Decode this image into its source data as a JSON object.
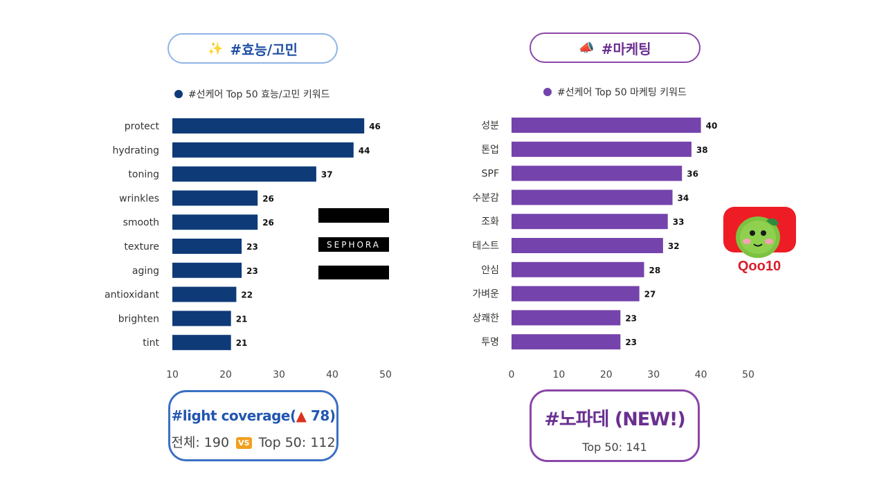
{
  "left": {
    "pill": {
      "emoji": "✨",
      "text": "#효능/고민"
    },
    "legend": {
      "label": "#선케어 Top 50 효능/고민 키워드",
      "color": "#0e3a78"
    },
    "box": {
      "line1_prefix": "#light coverage(",
      "triangle": "▲",
      "line1_suffix": " 78)",
      "line2_prefix": "전체: 190",
      "vs": "VS",
      "line2_suffix": "Top 50: 112"
    }
  },
  "right": {
    "pill": {
      "emoji": "📣",
      "text": "#마케팅"
    },
    "legend": {
      "label": "#선케어 Top 50 마케팅 키워드",
      "color": "#7443ac"
    },
    "box": {
      "line1": "#노파데 (NEW!)",
      "line2": "Top 50: 141"
    }
  },
  "logos": {
    "sephora": "SEPHORA",
    "qoo10": "Qoo10"
  },
  "chart_data": [
    {
      "type": "bar",
      "orientation": "horizontal",
      "title": "",
      "legend": "#선케어 Top 50 효능/고민 키워드",
      "categories": [
        "protect",
        "hydrating",
        "toning",
        "wrinkles",
        "smooth",
        "texture",
        "aging",
        "antioxidant",
        "brighten",
        "tint"
      ],
      "values": [
        46,
        44,
        37,
        26,
        26,
        23,
        23,
        22,
        21,
        21
      ],
      "xlim": [
        10,
        50
      ],
      "xticks": [
        10,
        20,
        30,
        40,
        50
      ],
      "color": "#0e3a78",
      "grid": false
    },
    {
      "type": "bar",
      "orientation": "horizontal",
      "title": "",
      "legend": "#선케어 Top 50 마케팅 키워드",
      "categories": [
        "성분",
        "톤업",
        "SPF",
        "수분감",
        "조화",
        "테스트",
        "안심",
        "가벼운",
        "상쾌한",
        "투명"
      ],
      "values": [
        40,
        38,
        36,
        34,
        33,
        32,
        28,
        27,
        23,
        23
      ],
      "xlim": [
        0,
        50
      ],
      "xticks": [
        0,
        10,
        20,
        30,
        40,
        50
      ],
      "color": "#7443ac",
      "grid": false
    }
  ]
}
